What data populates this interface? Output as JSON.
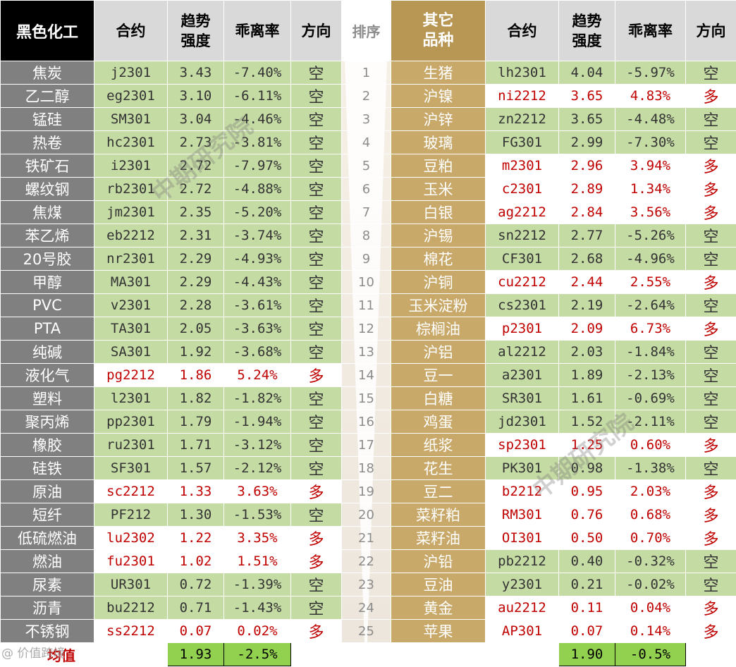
{
  "header": {
    "left_category": "黑色化工",
    "contract": "合约",
    "trend_line1": "趋势",
    "trend_line2": "强度",
    "deviation": "乖离率",
    "direction": "方向",
    "rank": "排序",
    "right_category_line1": "其它",
    "right_category_line2": "品种"
  },
  "direction_labels": {
    "short": "空",
    "long": "多"
  },
  "colors": {
    "short_bg": "#c5dba4",
    "long_text": "#c00000",
    "left_name_bg": "#808080",
    "right_name_bg": "#c8a96a",
    "header_gold": "#b89653",
    "avg_bg": "#92d050"
  },
  "left_rows": [
    {
      "name": "焦炭",
      "contract": "j2301",
      "strength": "3.43",
      "deviation": "-7.40%",
      "dir": "空"
    },
    {
      "name": "乙二醇",
      "contract": "eg2301",
      "strength": "3.10",
      "deviation": "-6.11%",
      "dir": "空"
    },
    {
      "name": "锰硅",
      "contract": "SM301",
      "strength": "3.04",
      "deviation": "-4.46%",
      "dir": "空"
    },
    {
      "name": "热卷",
      "contract": "hc2301",
      "strength": "2.73",
      "deviation": "-3.81%",
      "dir": "空"
    },
    {
      "name": "铁矿石",
      "contract": "i2301",
      "strength": "2.72",
      "deviation": "-7.97%",
      "dir": "空"
    },
    {
      "name": "螺纹钢",
      "contract": "rb2301",
      "strength": "2.72",
      "deviation": "-4.88%",
      "dir": "空"
    },
    {
      "name": "焦煤",
      "contract": "jm2301",
      "strength": "2.35",
      "deviation": "-5.20%",
      "dir": "空"
    },
    {
      "name": "苯乙烯",
      "contract": "eb2212",
      "strength": "2.31",
      "deviation": "-3.74%",
      "dir": "空"
    },
    {
      "name": "20号胶",
      "contract": "nr2301",
      "strength": "2.29",
      "deviation": "-4.93%",
      "dir": "空"
    },
    {
      "name": "甲醇",
      "contract": "MA301",
      "strength": "2.29",
      "deviation": "-4.43%",
      "dir": "空"
    },
    {
      "name": "PVC",
      "contract": "v2301",
      "strength": "2.28",
      "deviation": "-3.61%",
      "dir": "空"
    },
    {
      "name": "PTA",
      "contract": "TA301",
      "strength": "2.05",
      "deviation": "-3.63%",
      "dir": "空"
    },
    {
      "name": "纯碱",
      "contract": "SA301",
      "strength": "1.92",
      "deviation": "-3.68%",
      "dir": "空"
    },
    {
      "name": "液化气",
      "contract": "pg2212",
      "strength": "1.86",
      "deviation": "5.24%",
      "dir": "多"
    },
    {
      "name": "塑料",
      "contract": "l2301",
      "strength": "1.82",
      "deviation": "-1.82%",
      "dir": "空"
    },
    {
      "name": "聚丙烯",
      "contract": "pp2301",
      "strength": "1.79",
      "deviation": "-1.94%",
      "dir": "空"
    },
    {
      "name": "橡胶",
      "contract": "ru2301",
      "strength": "1.71",
      "deviation": "-3.12%",
      "dir": "空"
    },
    {
      "name": "硅铁",
      "contract": "SF301",
      "strength": "1.57",
      "deviation": "-2.12%",
      "dir": "空"
    },
    {
      "name": "原油",
      "contract": "sc2212",
      "strength": "1.33",
      "deviation": "3.63%",
      "dir": "多"
    },
    {
      "name": "短纤",
      "contract": "PF212",
      "strength": "1.30",
      "deviation": "-1.53%",
      "dir": "空"
    },
    {
      "name": "低硫燃油",
      "contract": "lu2302",
      "strength": "1.22",
      "deviation": "3.35%",
      "dir": "多"
    },
    {
      "name": "燃油",
      "contract": "fu2301",
      "strength": "1.02",
      "deviation": "1.51%",
      "dir": "多"
    },
    {
      "name": "尿素",
      "contract": "UR301",
      "strength": "0.72",
      "deviation": "-1.39%",
      "dir": "空"
    },
    {
      "name": "沥青",
      "contract": "bu2212",
      "strength": "0.71",
      "deviation": "-1.43%",
      "dir": "空"
    },
    {
      "name": "不锈钢",
      "contract": "ss2212",
      "strength": "0.07",
      "deviation": "0.02%",
      "dir": "多"
    }
  ],
  "ranks": [
    "1",
    "2",
    "3",
    "4",
    "5",
    "6",
    "7",
    "8",
    "9",
    "10",
    "11",
    "12",
    "13",
    "14",
    "15",
    "16",
    "17",
    "18",
    "19",
    "20",
    "21",
    "22",
    "23",
    "24",
    "25"
  ],
  "right_rows": [
    {
      "name": "生猪",
      "contract": "lh2301",
      "strength": "4.04",
      "deviation": "-5.97%",
      "dir": "空"
    },
    {
      "name": "沪镍",
      "contract": "ni2212",
      "strength": "3.65",
      "deviation": "4.83%",
      "dir": "多"
    },
    {
      "name": "沪锌",
      "contract": "zn2212",
      "strength": "3.65",
      "deviation": "-4.48%",
      "dir": "空"
    },
    {
      "name": "玻璃",
      "contract": "FG301",
      "strength": "2.99",
      "deviation": "-7.30%",
      "dir": "空"
    },
    {
      "name": "豆粕",
      "contract": "m2301",
      "strength": "2.96",
      "deviation": "3.94%",
      "dir": "多"
    },
    {
      "name": "玉米",
      "contract": "c2301",
      "strength": "2.89",
      "deviation": "1.34%",
      "dir": "多"
    },
    {
      "name": "白银",
      "contract": "ag2212",
      "strength": "2.84",
      "deviation": "3.56%",
      "dir": "多"
    },
    {
      "name": "沪锡",
      "contract": "sn2212",
      "strength": "2.77",
      "deviation": "-5.26%",
      "dir": "空"
    },
    {
      "name": "棉花",
      "contract": "CF301",
      "strength": "2.68",
      "deviation": "-4.96%",
      "dir": "空"
    },
    {
      "name": "沪铜",
      "contract": "cu2212",
      "strength": "2.44",
      "deviation": "2.55%",
      "dir": "多"
    },
    {
      "name": "玉米淀粉",
      "contract": "cs2301",
      "strength": "2.19",
      "deviation": "-2.64%",
      "dir": "空"
    },
    {
      "name": "棕榈油",
      "contract": "p2301",
      "strength": "2.09",
      "deviation": "6.73%",
      "dir": "多"
    },
    {
      "name": "沪铝",
      "contract": "al2212",
      "strength": "2.03",
      "deviation": "-1.84%",
      "dir": "空"
    },
    {
      "name": "豆一",
      "contract": "a2301",
      "strength": "1.89",
      "deviation": "-2.13%",
      "dir": "空"
    },
    {
      "name": "白糖",
      "contract": "SR301",
      "strength": "1.61",
      "deviation": "-0.69%",
      "dir": "空"
    },
    {
      "name": "鸡蛋",
      "contract": "jd2301",
      "strength": "1.52",
      "deviation": "-2.11%",
      "dir": "空"
    },
    {
      "name": "纸浆",
      "contract": "sp2301",
      "strength": "1.25",
      "deviation": "0.60%",
      "dir": "多"
    },
    {
      "name": "花生",
      "contract": "PK301",
      "strength": "0.98",
      "deviation": "-1.38%",
      "dir": "空"
    },
    {
      "name": "豆二",
      "contract": "b2212",
      "strength": "0.95",
      "deviation": "2.03%",
      "dir": "多"
    },
    {
      "name": "菜籽粕",
      "contract": "RM301",
      "strength": "0.76",
      "deviation": "0.68%",
      "dir": "多"
    },
    {
      "name": "菜籽油",
      "contract": "OI301",
      "strength": "0.50",
      "deviation": "0.70%",
      "dir": "多"
    },
    {
      "name": "沪铅",
      "contract": "pb2212",
      "strength": "0.40",
      "deviation": "-0.32%",
      "dir": "空"
    },
    {
      "name": "豆油",
      "contract": "y2301",
      "strength": "0.21",
      "deviation": "-0.02%",
      "dir": "空"
    },
    {
      "name": "黄金",
      "contract": "au2212",
      "strength": "0.11",
      "deviation": "0.04%",
      "dir": "多"
    },
    {
      "name": "苹果",
      "contract": "AP301",
      "strength": "0.07",
      "deviation": "0.14%",
      "dir": "多"
    }
  ],
  "average": {
    "label": "均值",
    "left_strength": "1.93",
    "left_deviation": "-2.5%",
    "right_strength": "1.90",
    "right_deviation": "-0.5%"
  },
  "watermark": "中期研究院",
  "brand_mark": "@ 价值跨境"
}
